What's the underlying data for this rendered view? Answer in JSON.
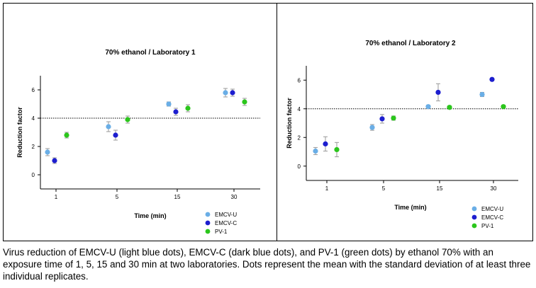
{
  "colors": {
    "EMCV-U": "#6aaee6",
    "EMCV-C": "#1d1ecf",
    "PV-1": "#2bc61c",
    "error_bar": "#9a9a9a",
    "threshold_line": "#000000"
  },
  "chart_data": [
    {
      "type": "scatter",
      "title": "70% ethanol  /  Laboratory 1",
      "xlabel": "Time (min)",
      "ylabel": "Reduction factor",
      "categories": [
        "1",
        "5",
        "15",
        "30"
      ],
      "yticks": [
        "0",
        "2",
        "4",
        "6"
      ],
      "ylim": [
        -1,
        7
      ],
      "threshold": 4,
      "threshold_style": "dotted",
      "legend_placement": "bottom-right",
      "series": [
        {
          "name": "EMCV-U",
          "values": [
            1.6,
            3.4,
            5.0,
            5.8
          ],
          "errors": [
            0.25,
            0.35,
            0.15,
            0.3
          ]
        },
        {
          "name": "EMCV-C",
          "values": [
            1.0,
            2.8,
            4.45,
            5.8
          ],
          "errors": [
            0.2,
            0.35,
            0.25,
            0.25
          ]
        },
        {
          "name": "PV-1",
          "values": [
            2.8,
            3.9,
            4.7,
            5.15
          ],
          "errors": [
            0.2,
            0.25,
            0.25,
            0.25
          ]
        }
      ]
    },
    {
      "type": "scatter",
      "title": "70% ethanol  /  Laboratory 2",
      "xlabel": "Time (min)",
      "ylabel": "Reduction factor",
      "categories": [
        "1",
        "5",
        "15",
        "30"
      ],
      "yticks": [
        "0",
        "2",
        "4",
        "6"
      ],
      "ylim": [
        -1,
        7
      ],
      "threshold": 4,
      "threshold_style": "dotted",
      "legend_placement": "bottom-right",
      "series": [
        {
          "name": "EMCV-U",
          "values": [
            1.05,
            2.7,
            4.15,
            5.0
          ],
          "errors": [
            0.25,
            0.2,
            0.1,
            0.15
          ]
        },
        {
          "name": "EMCV-C",
          "values": [
            1.55,
            3.3,
            5.15,
            6.05
          ],
          "errors": [
            0.5,
            0.3,
            0.6,
            0.1
          ]
        },
        {
          "name": "PV-1",
          "values": [
            1.15,
            3.35,
            4.1,
            4.15
          ],
          "errors": [
            0.5,
            0.15,
            0.1,
            0.1
          ]
        }
      ]
    }
  ],
  "caption": "Virus reduction of EMCV-U (light blue dots), EMCV-C (dark blue dots), and PV-1 (green dots) by ethanol 70% with an exposure time of 1, 5, 15 and 30 min at two laboratories. Dots represent the mean with the standard deviation of at least three individual replicates."
}
